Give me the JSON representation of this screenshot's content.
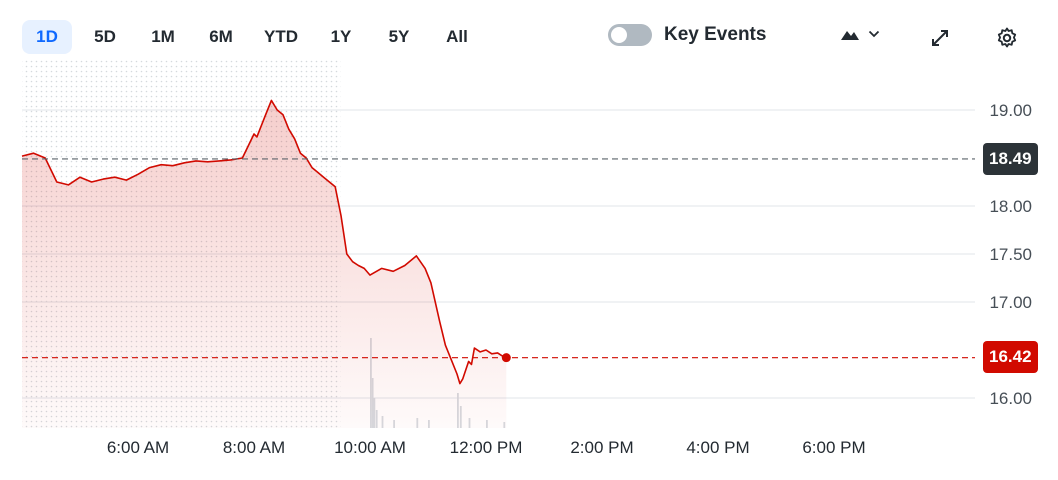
{
  "toolbar": {
    "ranges": [
      "1D",
      "5D",
      "1M",
      "6M",
      "YTD",
      "1Y",
      "5Y",
      "All"
    ],
    "active_range": "1D",
    "key_events_label": "Key Events",
    "key_events_on": false
  },
  "colors": {
    "accent": "#0f69ff",
    "line": "#d10a00",
    "prev_close_tag": "#2c3338",
    "last_price_tag": "#d10a00"
  },
  "chart_data": {
    "type": "area",
    "x_ticks": [
      "6:00 AM",
      "8:00 AM",
      "10:00 AM",
      "12:00 PM",
      "2:00 PM",
      "4:00 PM",
      "6:00 PM"
    ],
    "x_tick_hours": [
      6,
      8,
      10,
      12,
      14,
      16,
      18
    ],
    "y_ticks": [
      "19.00",
      "18.00",
      "17.50",
      "17.00",
      "16.00"
    ],
    "y_tick_values": [
      19.0,
      18.0,
      17.5,
      17.0,
      16.0
    ],
    "ylim": [
      15.7,
      19.5
    ],
    "xlim_hours": [
      4.0,
      19.5
    ],
    "previous_close": 18.49,
    "previous_close_label": "18.49",
    "last_price": 16.42,
    "last_price_label": "16.42",
    "premarket_end_hour": 9.5,
    "series": [
      {
        "x": [
          4.0,
          4.2,
          4.4,
          4.6,
          4.8,
          5.0,
          5.2,
          5.4,
          5.6,
          5.8,
          6.0,
          6.2,
          6.4,
          6.6,
          6.8,
          7.0,
          7.2,
          7.4,
          7.6,
          7.8,
          8.0,
          8.05,
          8.2,
          8.3,
          8.4,
          8.5,
          8.6,
          8.7,
          8.8,
          8.9,
          9.0,
          9.1,
          9.2,
          9.3,
          9.4,
          9.5,
          9.55,
          9.6,
          9.7,
          9.8,
          9.9,
          10.0,
          10.2,
          10.4,
          10.6,
          10.8,
          10.95,
          11.05,
          11.2,
          11.3,
          11.4,
          11.5,
          11.55,
          11.6,
          11.7,
          11.75,
          11.8,
          11.9,
          12.0,
          12.1,
          12.2,
          12.3,
          12.35
        ],
        "y": [
          18.52,
          18.55,
          18.5,
          18.25,
          18.22,
          18.3,
          18.25,
          18.28,
          18.3,
          18.27,
          18.33,
          18.4,
          18.43,
          18.42,
          18.45,
          18.47,
          18.46,
          18.47,
          18.48,
          18.5,
          18.75,
          18.72,
          18.95,
          19.1,
          19.0,
          18.95,
          18.8,
          18.7,
          18.55,
          18.5,
          18.4,
          18.35,
          18.3,
          18.25,
          18.2,
          17.9,
          17.7,
          17.5,
          17.42,
          17.38,
          17.35,
          17.28,
          17.35,
          17.32,
          17.38,
          17.48,
          17.35,
          17.2,
          16.8,
          16.55,
          16.4,
          16.25,
          16.15,
          16.2,
          16.38,
          16.35,
          16.52,
          16.48,
          16.5,
          16.46,
          16.47,
          16.43,
          16.42
        ]
      }
    ]
  }
}
